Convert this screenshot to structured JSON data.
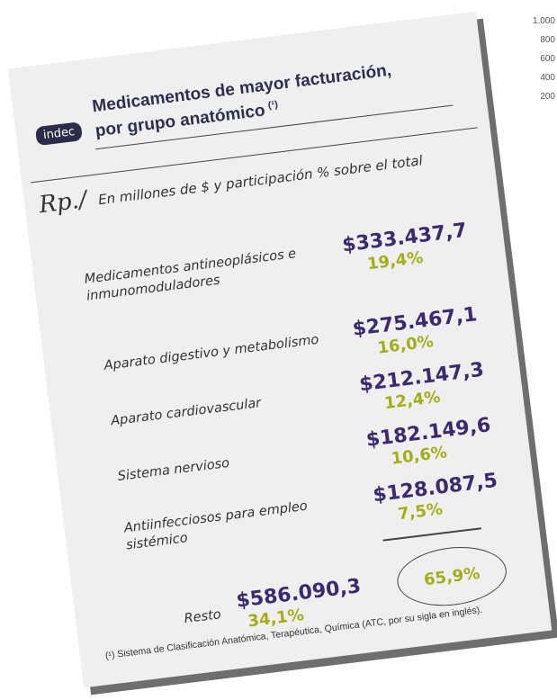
{
  "logo": "indec",
  "header": {
    "title_lines": [
      "Medicamentos de mayor facturación,",
      "por grupo anatómico"
    ],
    "title_note": "(¹)"
  },
  "subtitle_prefix": "Rp./",
  "subtitle": "En millones de $ y participación % sobre el total",
  "items": [
    {
      "label_lines": [
        "Medicamentos antineoplásicos e",
        "inmunomoduladores"
      ],
      "amount": "$333.437,7",
      "share": "19,4%"
    },
    {
      "label_lines": [
        "Aparato digestivo y metabolismo"
      ],
      "amount": "$275.467,1",
      "share": "16,0%"
    },
    {
      "label_lines": [
        "Aparato cardiovascular"
      ],
      "amount": "$212.147,3",
      "share": "12,4%"
    },
    {
      "label_lines": [
        "Sistema nervioso"
      ],
      "amount": "$182.149,6",
      "share": "10,6%"
    },
    {
      "label_lines": [
        "Antiinfecciosos para empleo",
        "sistémico"
      ],
      "amount": "$128.087,5",
      "share": "7,5%"
    }
  ],
  "rest": {
    "label": "Resto",
    "amount": "$586.090,3",
    "share": "34,1%"
  },
  "top_share": "65,9%",
  "footnote": "(¹) Sistema de Clasificación Anatómica, Terapéutica, Química (ATC, por su sigla en inglés).",
  "background_axis": [
    "1.000",
    "800",
    "600",
    "400",
    "200"
  ]
}
